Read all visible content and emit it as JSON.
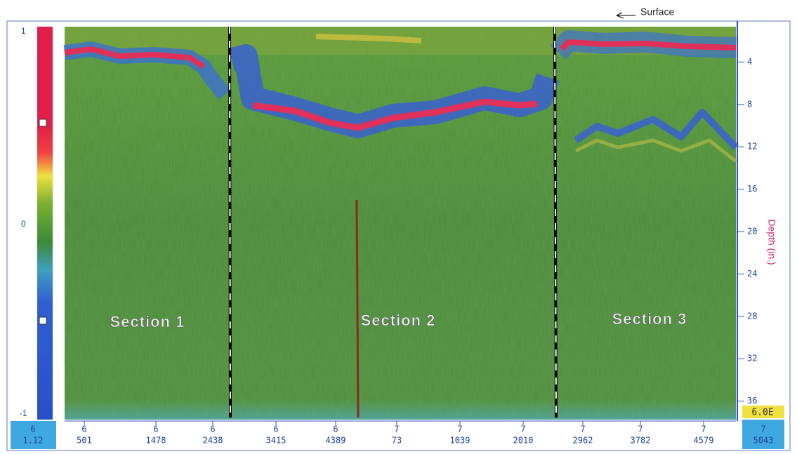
{
  "annotation": "Surface",
  "sections": [
    "Section 1",
    "Section 2",
    "Section 3"
  ],
  "depth_axis": {
    "label": "Depth (in.)",
    "ticks": [
      4,
      8,
      12,
      16,
      20,
      24,
      28,
      32,
      36
    ]
  },
  "amplitude_scale": [
    "1",
    "0",
    "-1"
  ],
  "readout": "6.0E",
  "bottom_axis": {
    "start": {
      "top": "6",
      "label": "1.12"
    },
    "end": {
      "top": "7",
      "label": "5043"
    },
    "markers": [
      {
        "top": "6",
        "label": "501"
      },
      {
        "top": "6",
        "label": "1478"
      },
      {
        "top": "6",
        "label": "2438"
      },
      {
        "top": "6",
        "label": "3415"
      },
      {
        "top": "6",
        "label": "4389"
      },
      {
        "top": "7",
        "label": "73"
      },
      {
        "top": "7",
        "label": "1039"
      },
      {
        "top": "7",
        "label": "2010"
      },
      {
        "top": "7",
        "label": "2962"
      },
      {
        "top": "7",
        "label": "3782"
      },
      {
        "top": "7",
        "label": "4579"
      }
    ]
  }
}
